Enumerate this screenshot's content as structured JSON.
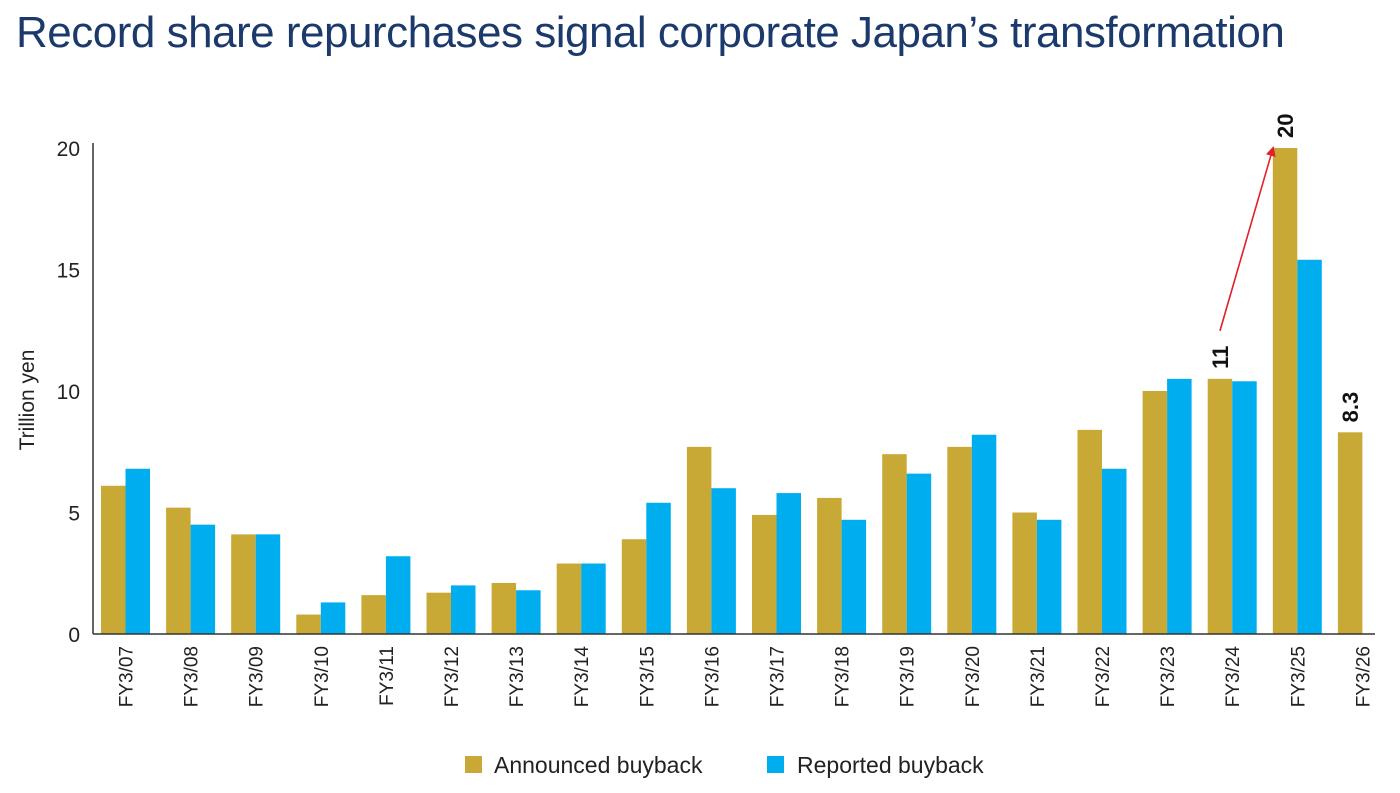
{
  "title": "Record share repurchases signal corporate Japan’s transformation",
  "colors": {
    "announced": "#c9a935",
    "reported": "#00aeef",
    "title": "#1b3a6b",
    "arrow": "#e0202a",
    "axis": "#333333"
  },
  "chart_data": {
    "type": "bar",
    "ylabel": "Trillion yen",
    "xlabel": "",
    "ylim": [
      0,
      20
    ],
    "yticks": [
      0,
      5,
      10,
      15,
      20
    ],
    "grid": false,
    "legend_position": "bottom-center",
    "categories": [
      "FY3/07",
      "FY3/08",
      "FY3/09",
      "FY3/10",
      "FY3/11",
      "FY3/12",
      "FY3/13",
      "FY3/14",
      "FY3/15",
      "FY3/16",
      "FY3/17",
      "FY3/18",
      "FY3/19",
      "FY3/20",
      "FY3/21",
      "FY3/22",
      "FY3/23",
      "FY3/24",
      "FY3/25",
      "FY3/26"
    ],
    "series": [
      {
        "name": "Announced buyback",
        "values": [
          6.1,
          5.2,
          4.1,
          0.8,
          1.6,
          1.7,
          2.1,
          2.9,
          3.9,
          7.7,
          4.9,
          5.6,
          7.4,
          7.7,
          5.0,
          8.4,
          10.0,
          10.5,
          20.0,
          8.3
        ]
      },
      {
        "name": "Reported buyback",
        "values": [
          6.8,
          4.5,
          4.1,
          1.3,
          3.2,
          2.0,
          1.8,
          2.9,
          5.4,
          6.0,
          5.8,
          4.7,
          6.6,
          8.2,
          4.7,
          6.8,
          10.5,
          10.4,
          15.4,
          null
        ]
      }
    ],
    "annotations": [
      {
        "text": "11",
        "category": "FY3/24"
      },
      {
        "text": "20",
        "category": "FY3/25"
      },
      {
        "text": "8.3",
        "category": "FY3/26"
      }
    ],
    "arrow": {
      "from_category": "FY3/24",
      "to_category": "FY3/25"
    }
  }
}
